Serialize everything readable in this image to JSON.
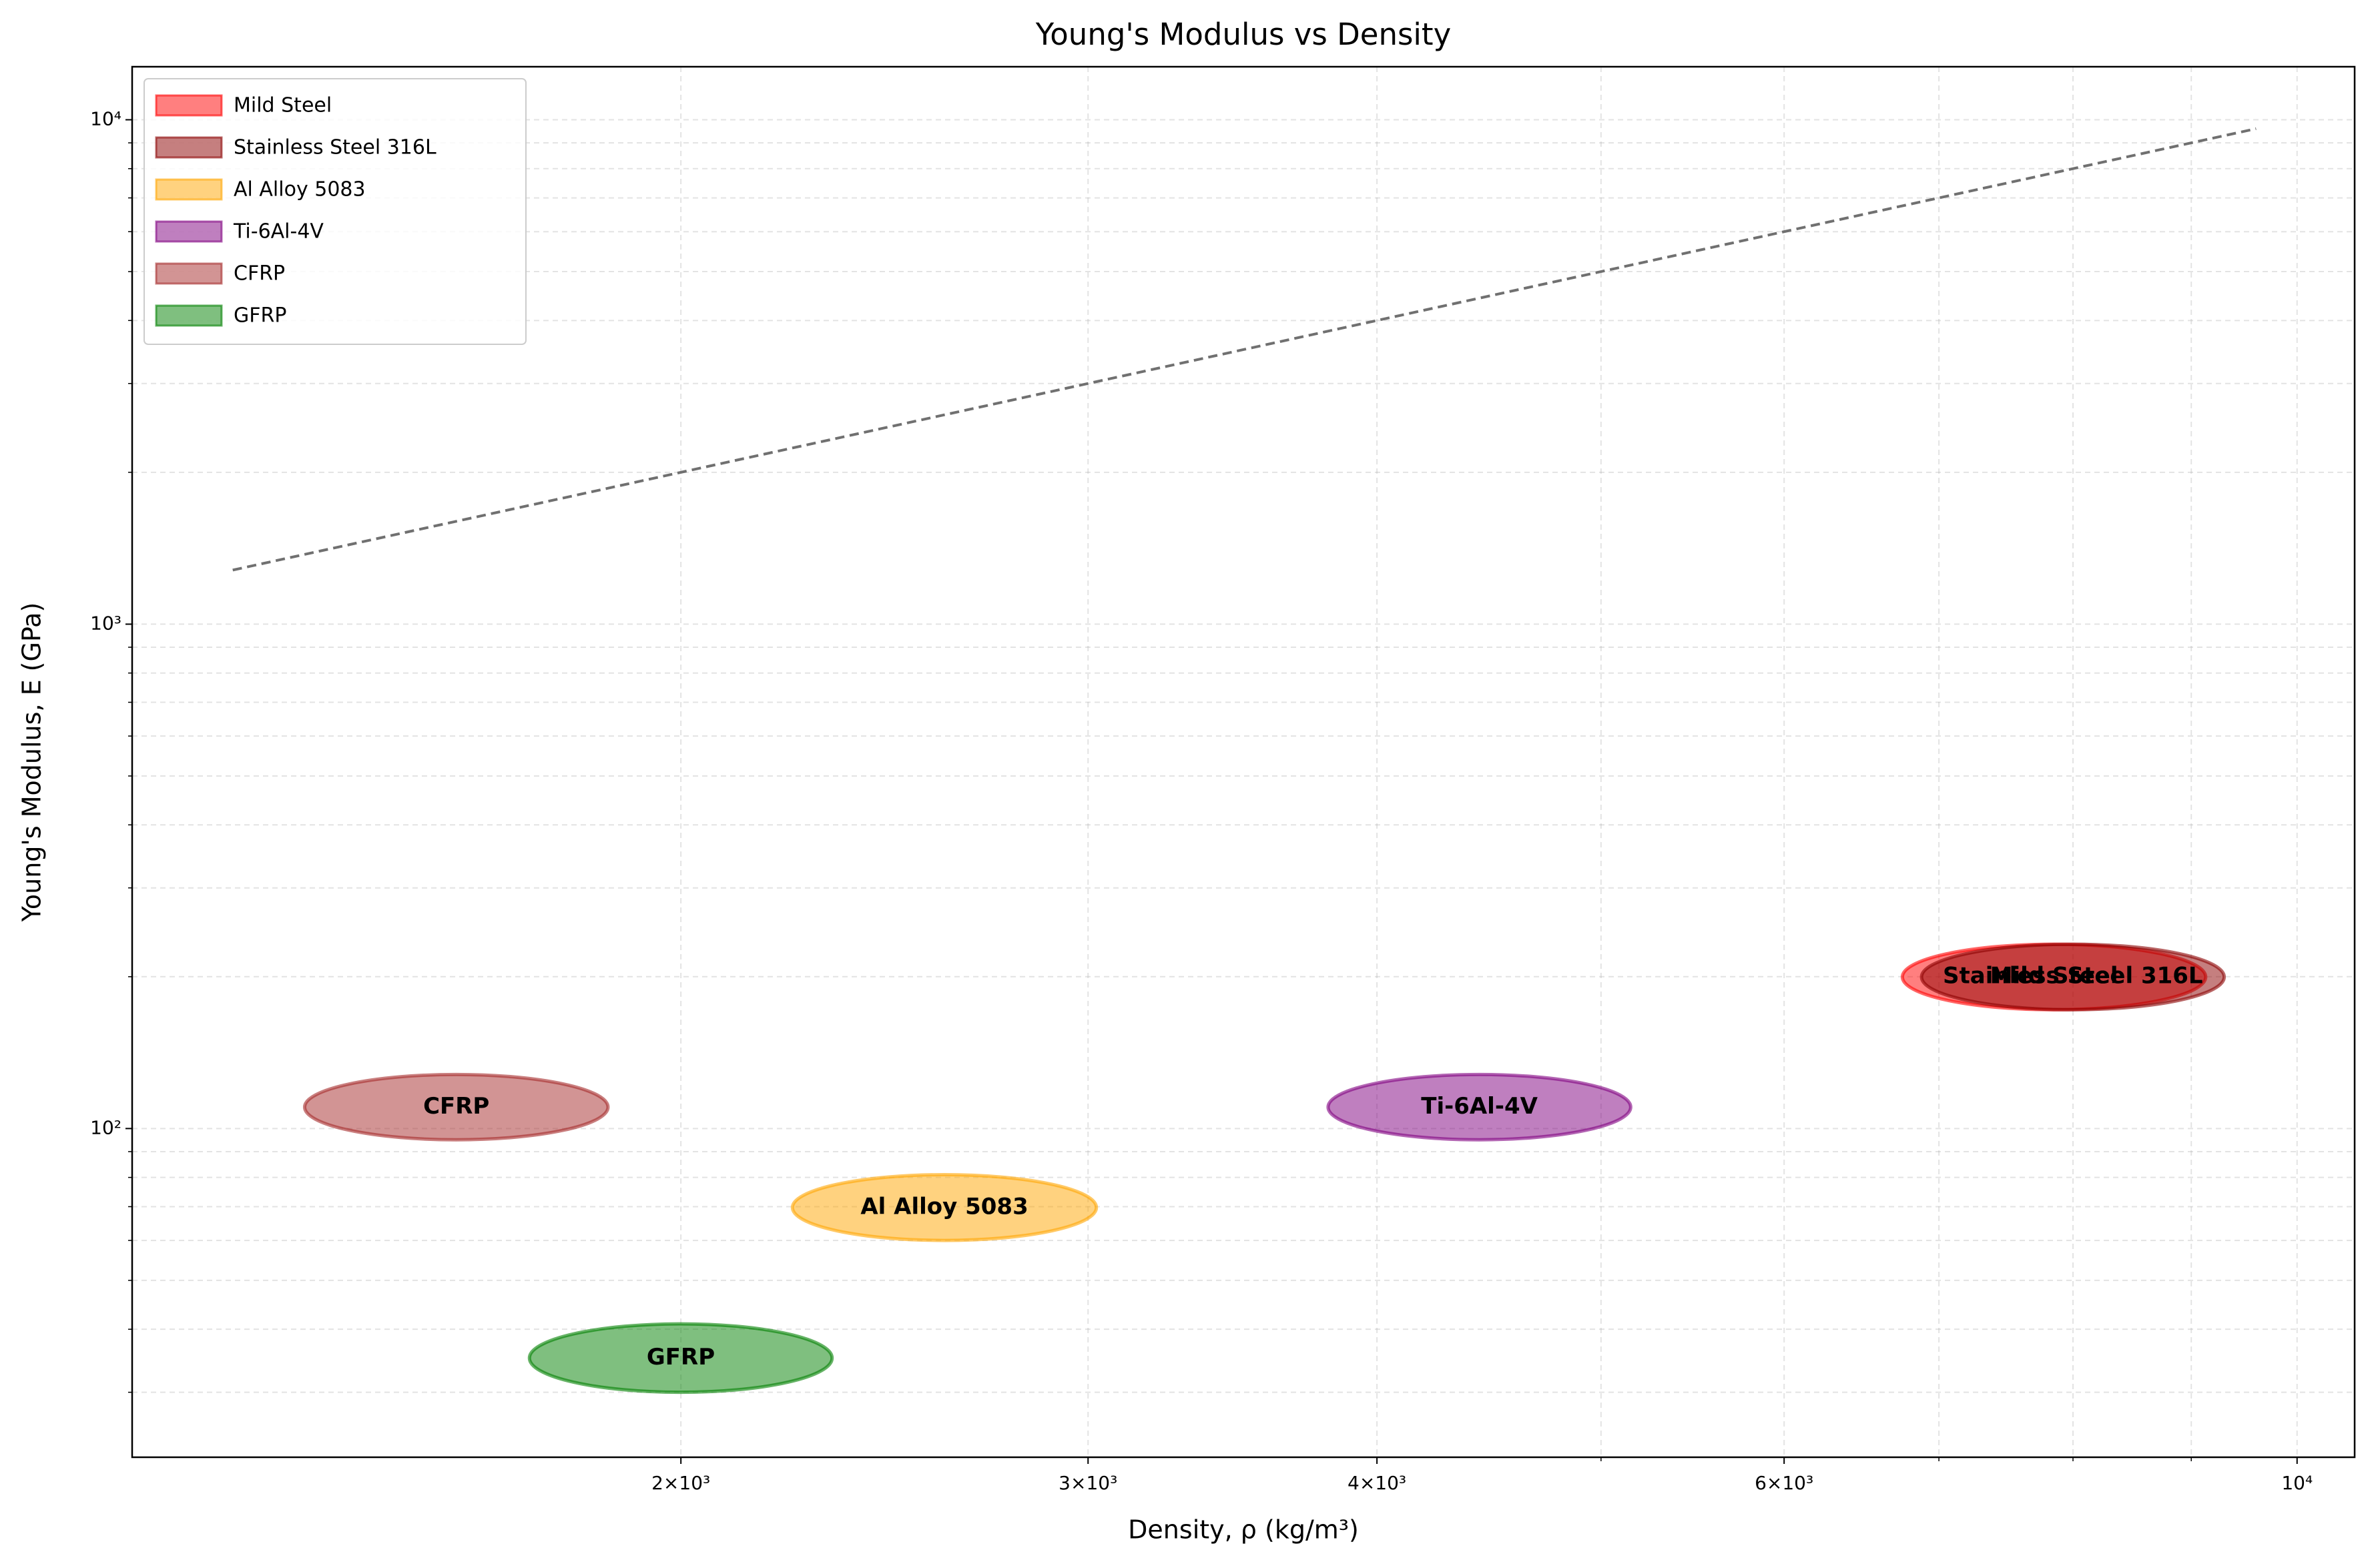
{
  "chart_data": {
    "type": "ellipse",
    "title": "Young's Modulus vs Density",
    "xlabel": "Density, ρ (kg/m³)",
    "ylabel": "Young's Modulus, E (GPa)",
    "xscale": "log",
    "yscale": "log",
    "xlim": [
      1158,
      10590
    ],
    "ylim": [
      22.3,
      12740
    ],
    "xticks": [
      {
        "value": 2000,
        "label": "2×10³"
      },
      {
        "value": 3000,
        "label": "3×10³"
      },
      {
        "value": 4000,
        "label": "4×10³"
      },
      {
        "value": 6000,
        "label": "6×10³"
      },
      {
        "value": 10000,
        "label": "10⁴"
      }
    ],
    "xminor": [
      5000,
      7000,
      8000,
      9000
    ],
    "yticks": [
      {
        "value": 100,
        "label": "10²"
      },
      {
        "value": 1000,
        "label": "10³"
      },
      {
        "value": 10000,
        "label": "10⁴"
      }
    ],
    "yminor": [
      30,
      40,
      50,
      60,
      70,
      80,
      90,
      200,
      300,
      400,
      500,
      600,
      700,
      800,
      900,
      2000,
      3000,
      4000,
      5000,
      6000,
      7000,
      8000,
      9000
    ],
    "grid": true,
    "legend": "upper left",
    "series": [
      {
        "name": "Mild Steel",
        "color": "#ff0000",
        "density": [
          6750,
          9130
        ],
        "modulus": [
          172,
          232
        ]
      },
      {
        "name": "Stainless Steel 316L",
        "color": "#8b0000",
        "density": [
          6880,
          9300
        ],
        "modulus": [
          172,
          232
        ]
      },
      {
        "name": "Al Alloy 5083",
        "color": "#ffa500",
        "density": [
          2235,
          3025
        ],
        "modulus": [
          60,
          81
        ]
      },
      {
        "name": "Ti-6Al-4V",
        "color": "#800080",
        "density": [
          3810,
          5150
        ],
        "modulus": [
          95,
          128
        ]
      },
      {
        "name": "CFRP",
        "color": "#a52a2a",
        "density": [
          1375,
          1860
        ],
        "modulus": [
          95,
          128
        ]
      },
      {
        "name": "GFRP",
        "color": "#008000",
        "density": [
          1720,
          2325
        ],
        "modulus": [
          30,
          41
        ]
      }
    ],
    "guide_line": {
      "color": "#707070",
      "x": [
        1280,
        9600
      ],
      "y": [
        1280,
        9600
      ]
    }
  }
}
